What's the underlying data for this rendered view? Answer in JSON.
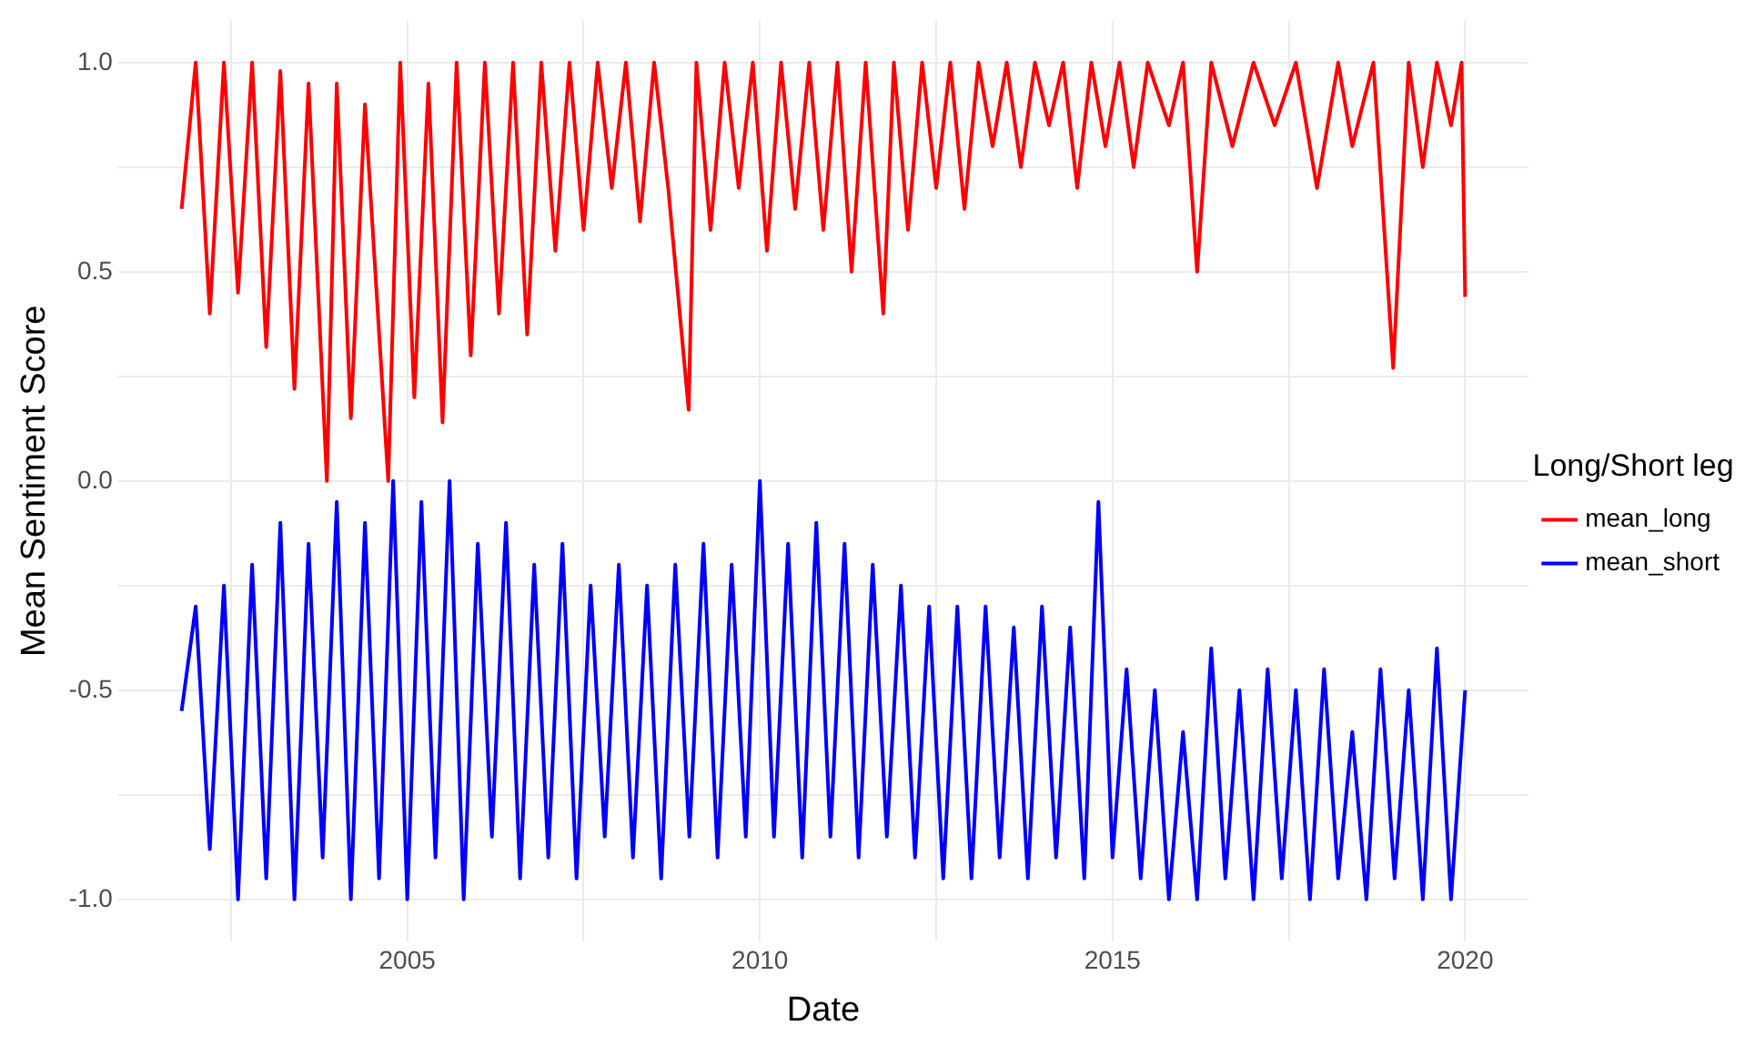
{
  "chart_data": {
    "type": "line",
    "xlabel": "Date",
    "ylabel": "Mean Sentiment Score",
    "legend_title": "Long/Short leg",
    "legend": "right",
    "grid": true,
    "line_style": "solid",
    "marker": "none",
    "xlim": [
      2000.9,
      2020.9
    ],
    "ylim": [
      -1.1,
      1.1
    ],
    "xticks": [
      {
        "value": 2002.5,
        "label": null
      },
      2005,
      {
        "value": 2007.5,
        "label": null
      },
      2010,
      {
        "value": 2012.5,
        "label": null
      },
      2015,
      {
        "value": 2017.5,
        "label": null
      },
      2020
    ],
    "yticks": [
      {
        "value": -1,
        "label": "-1.0"
      },
      {
        "value": -0.75,
        "label": null
      },
      {
        "value": -0.5,
        "label": "-0.5"
      },
      {
        "value": -0.25,
        "label": null
      },
      {
        "value": 0,
        "label": "0.0"
      },
      {
        "value": 0.25,
        "label": null
      },
      {
        "value": 0.5,
        "label": "0.5"
      },
      {
        "value": 0.75,
        "label": null
      },
      {
        "value": 1,
        "label": "1.0"
      }
    ],
    "series": [
      {
        "name": "mean_long",
        "color": "#ff0000",
        "x": [
          2001.8,
          2002.0,
          2002.2,
          2002.4,
          2002.6,
          2002.8,
          2003.0,
          2003.2,
          2003.4,
          2003.6,
          2003.86,
          2004.0,
          2004.2,
          2004.4,
          2004.73,
          2004.9,
          2005.1,
          2005.3,
          2005.5,
          2005.7,
          2005.9,
          2006.1,
          2006.3,
          2006.5,
          2006.7,
          2006.9,
          2007.1,
          2007.3,
          2007.5,
          2007.7,
          2007.9,
          2008.1,
          2008.3,
          2008.5,
          2008.7,
          2008.99,
          2009.1,
          2009.3,
          2009.5,
          2009.7,
          2009.9,
          2010.1,
          2010.3,
          2010.5,
          2010.7,
          2010.9,
          2011.1,
          2011.3,
          2011.5,
          2011.75,
          2011.9,
          2012.1,
          2012.3,
          2012.5,
          2012.7,
          2012.9,
          2013.1,
          2013.3,
          2013.5,
          2013.7,
          2013.9,
          2014.1,
          2014.3,
          2014.5,
          2014.7,
          2014.9,
          2015.1,
          2015.3,
          2015.5,
          2015.8,
          2016.0,
          2016.2,
          2016.4,
          2016.7,
          2017.0,
          2017.3,
          2017.6,
          2017.9,
          2018.2,
          2018.4,
          2018.7,
          2018.98,
          2019.2,
          2019.4,
          2019.6,
          2019.8,
          2019.95,
          2020.0
        ],
        "values": [
          0.65,
          1.0,
          0.4,
          1.0,
          0.45,
          1.0,
          0.32,
          0.98,
          0.22,
          0.95,
          0.0,
          0.95,
          0.15,
          0.9,
          0.0,
          1.0,
          0.2,
          0.95,
          0.14,
          1.0,
          0.3,
          1.0,
          0.4,
          1.0,
          0.35,
          1.0,
          0.55,
          1.0,
          0.6,
          1.0,
          0.7,
          1.0,
          0.62,
          1.0,
          0.7,
          0.17,
          1.0,
          0.6,
          1.0,
          0.7,
          1.0,
          0.55,
          1.0,
          0.65,
          1.0,
          0.6,
          1.0,
          0.5,
          1.0,
          0.4,
          1.0,
          0.6,
          1.0,
          0.7,
          1.0,
          0.65,
          1.0,
          0.8,
          1.0,
          0.75,
          1.0,
          0.85,
          1.0,
          0.7,
          1.0,
          0.8,
          1.0,
          0.75,
          1.0,
          0.85,
          1.0,
          0.5,
          1.0,
          0.8,
          1.0,
          0.85,
          1.0,
          0.7,
          1.0,
          0.8,
          1.0,
          0.27,
          1.0,
          0.75,
          1.0,
          0.85,
          1.0,
          0.44
        ]
      },
      {
        "name": "mean_short",
        "color": "#0000ff",
        "x": [
          2001.8,
          2002.0,
          2002.2,
          2002.4,
          2002.6,
          2002.8,
          2003.0,
          2003.2,
          2003.4,
          2003.6,
          2003.8,
          2004.0,
          2004.2,
          2004.4,
          2004.6,
          2004.8,
          2005.0,
          2005.2,
          2005.4,
          2005.6,
          2005.8,
          2006.0,
          2006.2,
          2006.4,
          2006.6,
          2006.8,
          2007.0,
          2007.2,
          2007.4,
          2007.6,
          2007.8,
          2008.0,
          2008.2,
          2008.4,
          2008.6,
          2008.8,
          2009.0,
          2009.2,
          2009.4,
          2009.6,
          2009.8,
          2010.0,
          2010.2,
          2010.4,
          2010.6,
          2010.8,
          2011.0,
          2011.2,
          2011.4,
          2011.6,
          2011.8,
          2012.0,
          2012.2,
          2012.4,
          2012.6,
          2012.8,
          2013.0,
          2013.2,
          2013.4,
          2013.6,
          2013.8,
          2014.0,
          2014.2,
          2014.4,
          2014.6,
          2014.8,
          2015.0,
          2015.2,
          2015.4,
          2015.6,
          2015.8,
          2016.0,
          2016.2,
          2016.4,
          2016.6,
          2016.8,
          2017.0,
          2017.2,
          2017.4,
          2017.6,
          2017.8,
          2018.0,
          2018.2,
          2018.4,
          2018.6,
          2018.8,
          2019.0,
          2019.2,
          2019.4,
          2019.6,
          2019.8,
          2020.0
        ],
        "values": [
          -0.55,
          -0.3,
          -0.88,
          -0.25,
          -1.0,
          -0.2,
          -0.95,
          -0.1,
          -1.0,
          -0.15,
          -0.9,
          -0.05,
          -1.0,
          -0.1,
          -0.95,
          0.0,
          -1.0,
          -0.05,
          -0.9,
          0.0,
          -1.0,
          -0.15,
          -0.85,
          -0.1,
          -0.95,
          -0.2,
          -0.9,
          -0.15,
          -0.95,
          -0.25,
          -0.85,
          -0.2,
          -0.9,
          -0.25,
          -0.95,
          -0.2,
          -0.85,
          -0.15,
          -0.9,
          -0.2,
          -0.85,
          0.0,
          -0.85,
          -0.15,
          -0.9,
          -0.1,
          -0.85,
          -0.15,
          -0.9,
          -0.2,
          -0.85,
          -0.25,
          -0.9,
          -0.3,
          -0.95,
          -0.3,
          -0.95,
          -0.3,
          -0.9,
          -0.35,
          -0.95,
          -0.3,
          -0.9,
          -0.35,
          -0.95,
          -0.05,
          -0.9,
          -0.45,
          -0.95,
          -0.5,
          -1.0,
          -0.6,
          -1.0,
          -0.4,
          -0.95,
          -0.5,
          -1.0,
          -0.45,
          -0.95,
          -0.5,
          -1.0,
          -0.45,
          -0.95,
          -0.6,
          -1.0,
          -0.45,
          -0.95,
          -0.5,
          -1.0,
          -0.4,
          -1.0,
          -0.5
        ]
      }
    ]
  }
}
